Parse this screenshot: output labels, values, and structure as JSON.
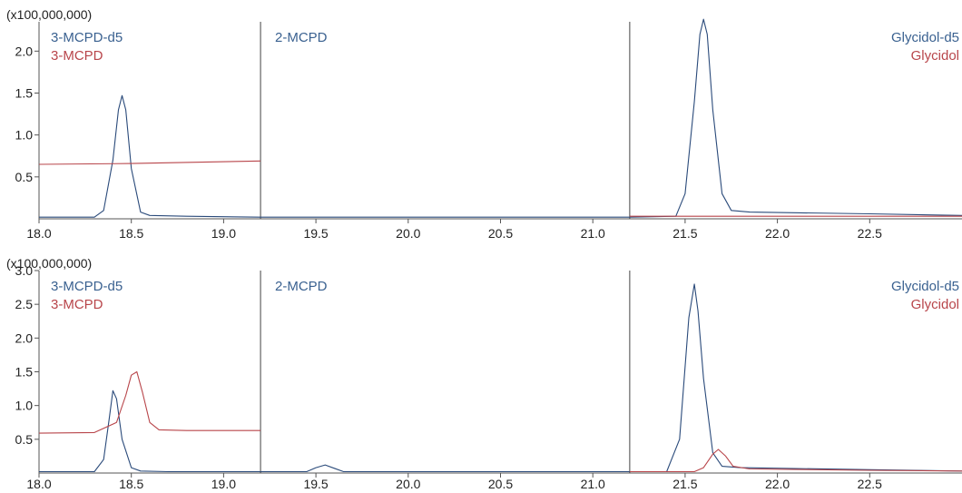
{
  "chart_data": [
    {
      "type": "line",
      "multiplier_label": "(x100,000,000)",
      "xlim": [
        18.0,
        23.0
      ],
      "ylim": [
        0,
        2.35
      ],
      "x_ticks": [
        "18.0",
        "18.5",
        "19.0",
        "19.5",
        "20.0",
        "20.5",
        "21.0",
        "21.5",
        "22.0",
        "22.5"
      ],
      "y_ticks": [
        "0.5",
        "1.0",
        "1.5",
        "2.0"
      ],
      "segment_boundaries": [
        19.2,
        21.2
      ],
      "segment_labels": [
        {
          "text": "3-MCPD-d5",
          "color": "#3a6190"
        },
        {
          "text": "3-MCPD",
          "color": "#b8454a"
        },
        {
          "text": "2-MCPD",
          "color": "#3a6190"
        },
        {
          "text": "Glycidol-d5",
          "color": "#3a6190"
        },
        {
          "text": "Glycidol",
          "color": "#b8454a"
        }
      ],
      "series": [
        {
          "name": "3-MCPD-d5",
          "color": "#2a4a7a",
          "x": [
            18.0,
            18.3,
            18.35,
            18.4,
            18.43,
            18.45,
            18.47,
            18.5,
            18.55,
            18.6,
            18.8,
            19.2
          ],
          "y": [
            0.02,
            0.02,
            0.1,
            0.7,
            1.3,
            1.47,
            1.3,
            0.6,
            0.08,
            0.04,
            0.03,
            0.02
          ]
        },
        {
          "name": "3-MCPD",
          "color": "#b8454a",
          "x": [
            18.0,
            18.5,
            19.2
          ],
          "y": [
            0.65,
            0.66,
            0.69
          ]
        },
        {
          "name": "2-MCPD",
          "color": "#2a4a7a",
          "x": [
            19.2,
            21.2
          ],
          "y": [
            0.02,
            0.02
          ]
        },
        {
          "name": "Glycidol-d5",
          "color": "#2a4a7a",
          "x": [
            21.2,
            21.45,
            21.5,
            21.55,
            21.58,
            21.6,
            21.62,
            21.65,
            21.7,
            21.75,
            21.85,
            22.5,
            23.0
          ],
          "y": [
            0.02,
            0.03,
            0.3,
            1.4,
            2.2,
            2.38,
            2.2,
            1.3,
            0.3,
            0.1,
            0.08,
            0.06,
            0.04
          ]
        },
        {
          "name": "Glycidol",
          "color": "#b8454a",
          "x": [
            21.2,
            23.0
          ],
          "y": [
            0.03,
            0.03
          ]
        }
      ]
    },
    {
      "type": "line",
      "multiplier_label": "(x100,000,000)",
      "xlim": [
        18.0,
        23.0
      ],
      "ylim": [
        0,
        3.0
      ],
      "x_ticks": [
        "18.0",
        "18.5",
        "19.0",
        "19.5",
        "20.0",
        "20.5",
        "21.0",
        "21.5",
        "22.0",
        "22.5"
      ],
      "y_ticks": [
        "0.5",
        "1.0",
        "1.5",
        "2.0",
        "2.5",
        "3.0"
      ],
      "segment_boundaries": [
        19.2,
        21.2
      ],
      "segment_labels": [
        {
          "text": "3-MCPD-d5",
          "color": "#3a6190"
        },
        {
          "text": "3-MCPD",
          "color": "#b8454a"
        },
        {
          "text": "2-MCPD",
          "color": "#3a6190"
        },
        {
          "text": "Glycidol-d5",
          "color": "#3a6190"
        },
        {
          "text": "Glycidol",
          "color": "#b8454a"
        }
      ],
      "series": [
        {
          "name": "3-MCPD-d5",
          "color": "#2a4a7a",
          "x": [
            18.0,
            18.3,
            18.35,
            18.38,
            18.4,
            18.42,
            18.45,
            18.5,
            18.55,
            18.7,
            19.2
          ],
          "y": [
            0.02,
            0.02,
            0.2,
            0.8,
            1.22,
            1.1,
            0.5,
            0.08,
            0.03,
            0.02,
            0.02
          ]
        },
        {
          "name": "3-MCPD",
          "color": "#b8454a",
          "x": [
            18.0,
            18.3,
            18.42,
            18.47,
            18.5,
            18.53,
            18.56,
            18.6,
            18.65,
            18.8,
            19.2
          ],
          "y": [
            0.59,
            0.6,
            0.75,
            1.15,
            1.45,
            1.5,
            1.2,
            0.75,
            0.64,
            0.63,
            0.63
          ]
        },
        {
          "name": "2-MCPD",
          "color": "#2a4a7a",
          "x": [
            19.2,
            19.45,
            19.5,
            19.55,
            19.6,
            19.65,
            21.2
          ],
          "y": [
            0.02,
            0.02,
            0.08,
            0.12,
            0.07,
            0.02,
            0.02
          ]
        },
        {
          "name": "Glycidol-d5",
          "color": "#2a4a7a",
          "x": [
            21.2,
            21.4,
            21.47,
            21.52,
            21.55,
            21.57,
            21.6,
            21.65,
            21.7,
            21.8,
            22.5,
            23.0
          ],
          "y": [
            0.02,
            0.02,
            0.5,
            2.3,
            2.8,
            2.4,
            1.4,
            0.3,
            0.1,
            0.08,
            0.05,
            0.03
          ]
        },
        {
          "name": "Glycidol",
          "color": "#b8454a",
          "x": [
            21.2,
            21.55,
            21.6,
            21.65,
            21.68,
            21.72,
            21.76,
            21.85,
            22.5,
            23.0
          ],
          "y": [
            0.02,
            0.02,
            0.08,
            0.28,
            0.35,
            0.25,
            0.1,
            0.06,
            0.04,
            0.03
          ]
        }
      ]
    }
  ]
}
